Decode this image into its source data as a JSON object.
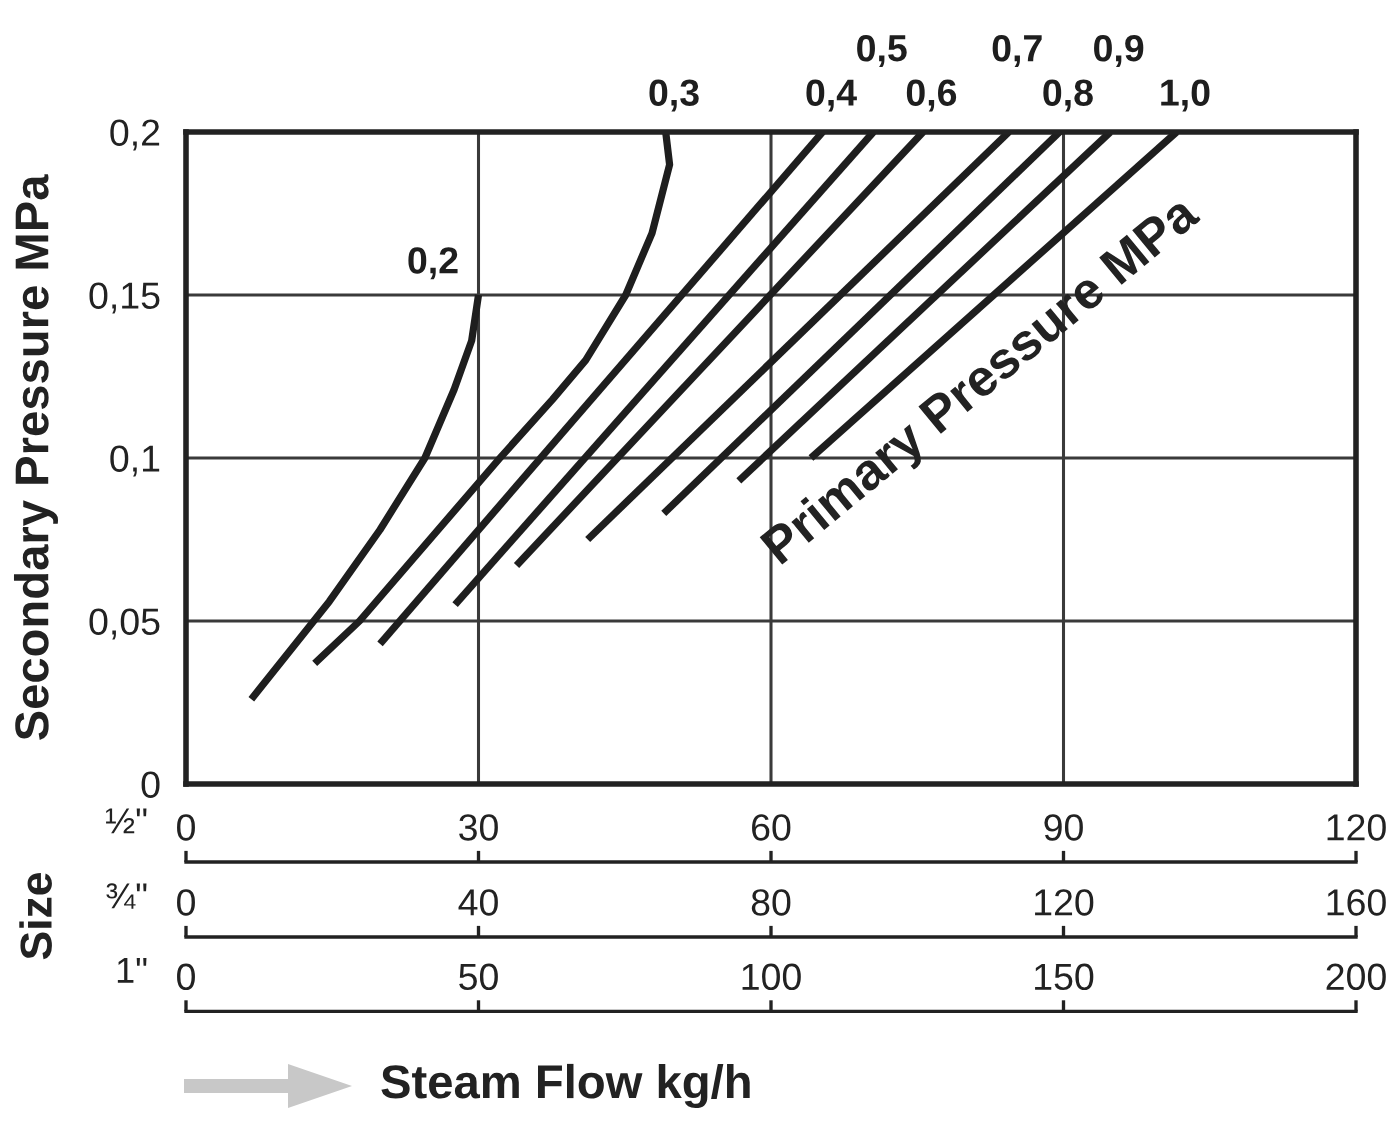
{
  "chart_data": {
    "type": "line",
    "ylabel": "Secondary Pressure MPa",
    "xlabel": "½\"",
    "x2label": "¾\"",
    "xlim": [
      0,
      120
    ],
    "xticks": [
      0,
      30,
      60,
      90,
      120
    ],
    "x2lim": [
      0,
      160
    ],
    "x2ticks": [
      0,
      40,
      80,
      120,
      160
    ],
    "ylim": [
      0,
      0.2
    ],
    "yticks": [
      0,
      {
        "value": 0.05,
        "label": "0,05"
      },
      {
        "value": 0.1,
        "label": "0,1"
      },
      {
        "value": 0.15,
        "label": "0,15"
      },
      {
        "value": 0.2,
        "label": "0,2"
      }
    ],
    "grid": true,
    "line_style": "solid",
    "annotations": [
      "Primary Pressure MPa",
      "Size",
      "Steam Flow kg/h",
      "1\"",
      "0",
      "50",
      "100",
      "150",
      "200"
    ],
    "series": [
      {
        "name": "0,2",
        "color": "#1e1e1e",
        "x": [
          6.7,
          14.7,
          19.9,
          24.5,
          27.5,
          29.3,
          30
        ],
        "values": [
          0.026,
          0.056,
          0.078,
          0.1,
          0.121,
          0.136,
          0.15
        ]
      },
      {
        "name": "0,3",
        "color": "#1e1e1e",
        "x": [
          13.2,
          17.8,
          32.2,
          37.6,
          41,
          45.1,
          47.8,
          49.6,
          49.2
        ],
        "values": [
          0.037,
          0.05,
          0.1,
          0.118,
          0.13,
          0.15,
          0.169,
          0.19,
          0.2
        ]
      },
      {
        "name": "0,4",
        "color": "#1e1e1e",
        "x": [
          19.9,
          65.3
        ],
        "values": [
          0.043,
          0.2
        ]
      },
      {
        "name": "0,5",
        "color": "#1e1e1e",
        "x": [
          27.6,
          70.5
        ],
        "values": [
          0.055,
          0.2
        ]
      },
      {
        "name": "0,6",
        "color": "#1e1e1e",
        "x": [
          33.9,
          75.6
        ],
        "values": [
          0.067,
          0.2
        ]
      },
      {
        "name": "0,7",
        "color": "#1e1e1e",
        "x": [
          41.2,
          84.4
        ],
        "values": [
          0.075,
          0.2
        ]
      },
      {
        "name": "0,8",
        "color": "#1e1e1e",
        "x": [
          49,
          89.6
        ],
        "values": [
          0.083,
          0.2
        ]
      },
      {
        "name": "0,9",
        "color": "#1e1e1e",
        "x": [
          56.7,
          94.8
        ],
        "values": [
          0.093,
          0.2
        ]
      },
      {
        "name": "1,0",
        "color": "#1e1e1e",
        "x": [
          64.1,
          101.6
        ],
        "values": [
          0.1,
          0.2
        ]
      }
    ]
  }
}
